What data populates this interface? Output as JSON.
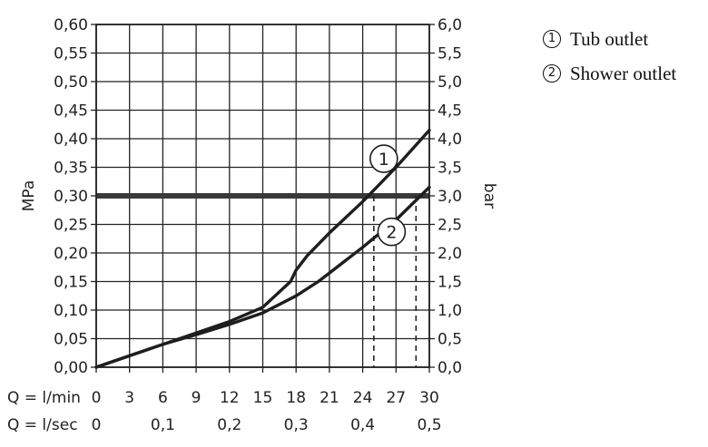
{
  "chart_data": {
    "type": "line",
    "x_axis": {
      "label": "Q = l/min",
      "ticks": [
        "0",
        "3",
        "6",
        "9",
        "12",
        "15",
        "18",
        "21",
        "24",
        "27",
        "30"
      ],
      "range": [
        0,
        30
      ]
    },
    "x_axis_secondary": {
      "label": "Q = l/sec",
      "ticks": [
        {
          "value": 0,
          "label": "0"
        },
        {
          "value": 0.1,
          "label": "0,1"
        },
        {
          "value": 0.2,
          "label": "0,2"
        },
        {
          "value": 0.3,
          "label": "0,3"
        },
        {
          "value": 0.4,
          "label": "0,4"
        },
        {
          "value": 0.5,
          "label": "0,5"
        }
      ]
    },
    "y_axis_left": {
      "label": "MPa",
      "range": [
        0,
        0.6
      ],
      "ticks": [
        "0,00",
        "0,05",
        "0,10",
        "0,15",
        "0,20",
        "0,25",
        "0,30",
        "0,35",
        "0,40",
        "0,45",
        "0,50",
        "0,55",
        "0,60"
      ]
    },
    "y_axis_right": {
      "label": "bar",
      "range": [
        0,
        6
      ],
      "ticks": [
        "0,0",
        "0,5",
        "1,0",
        "1,5",
        "2,0",
        "2,5",
        "3,0",
        "3,5",
        "4,0",
        "4,5",
        "5,0",
        "5,5",
        "6,0"
      ]
    },
    "grid": true,
    "reference_line": {
      "y": 0.3
    },
    "marker_lines": [
      {
        "x": 25,
        "y": 0.3
      },
      {
        "x": 28.8,
        "y": 0.3
      }
    ],
    "series": [
      {
        "marker": "1",
        "x": [
          0,
          3,
          6,
          9,
          12,
          15,
          17.5,
          18,
          19,
          21,
          24,
          27,
          30
        ],
        "y": [
          0,
          0.02,
          0.04,
          0.06,
          0.08,
          0.105,
          0.15,
          0.17,
          0.195,
          0.235,
          0.29,
          0.35,
          0.415
        ]
      },
      {
        "marker": "2",
        "x": [
          0,
          3,
          6,
          9,
          12,
          15,
          18,
          20,
          21,
          24,
          27,
          30
        ],
        "y": [
          0,
          0.02,
          0.04,
          0.057,
          0.075,
          0.095,
          0.125,
          0.15,
          0.165,
          0.21,
          0.258,
          0.315
        ]
      }
    ],
    "legend_position": "top-right",
    "legend": [
      {
        "marker": "1",
        "label": "Tub outlet"
      },
      {
        "marker": "2",
        "label": "Shower outlet"
      }
    ]
  }
}
